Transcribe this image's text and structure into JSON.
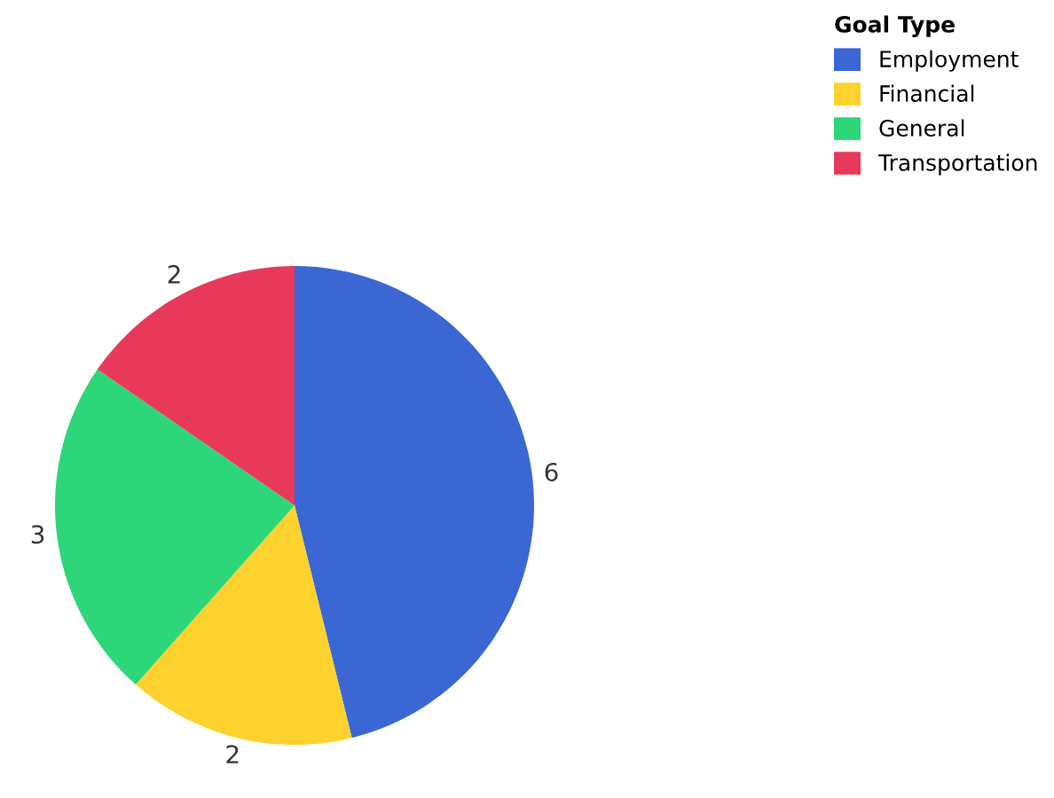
{
  "chart_data": {
    "type": "pie",
    "legend_title": "Goal Type",
    "categories": [
      "Employment",
      "Financial",
      "General",
      "Transportation"
    ],
    "values": [
      6,
      2,
      3,
      2
    ],
    "colors": [
      "#3a67d4",
      "#fdd22f",
      "#2ed67a",
      "#e8395a"
    ],
    "data_labels": true,
    "legend": "top right"
  }
}
